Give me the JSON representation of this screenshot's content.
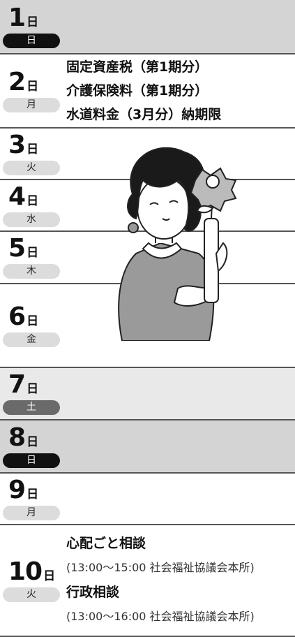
{
  "days": [
    {
      "day": "1",
      "unit": "日",
      "weekday": "日"
    },
    {
      "day": "2",
      "unit": "日",
      "weekday": "月",
      "events": [
        "固定資産税（第1期分）",
        "介護保険料（第1期分）",
        "水道料金（3月分）納期限"
      ]
    },
    {
      "day": "3",
      "unit": "日",
      "weekday": "火"
    },
    {
      "day": "4",
      "unit": "日",
      "weekday": "水"
    },
    {
      "day": "5",
      "unit": "日",
      "weekday": "木"
    },
    {
      "day": "6",
      "unit": "日",
      "weekday": "金"
    },
    {
      "day": "7",
      "unit": "日",
      "weekday": "土"
    },
    {
      "day": "8",
      "unit": "日",
      "weekday": "日"
    },
    {
      "day": "9",
      "unit": "日",
      "weekday": "月"
    },
    {
      "day": "10",
      "unit": "日",
      "weekday": "火",
      "events": [
        "心配ごと相談",
        "(13:00～15:00 社会福祉協議会本所)",
        "行政相談",
        "(13:00～16:00 社会福祉協議会本所)"
      ]
    }
  ]
}
